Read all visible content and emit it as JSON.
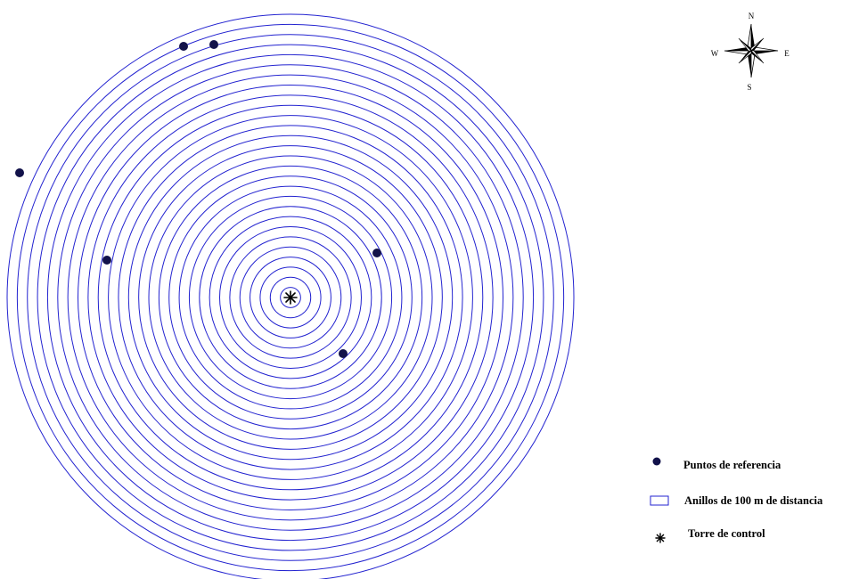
{
  "map": {
    "colors": {
      "ring_stroke": "#2323d0",
      "point_fill": "#12124a",
      "tower_fill": "#000000",
      "compass_fill": "#000000"
    },
    "rings": {
      "count": 28,
      "spacing_label": "100 m"
    },
    "tower": {
      "symbol": "asterisk-icon"
    },
    "reference_points": [
      {
        "id": "p1"
      },
      {
        "id": "p2"
      },
      {
        "id": "p3"
      },
      {
        "id": "p4"
      },
      {
        "id": "p5"
      },
      {
        "id": "p6"
      }
    ]
  },
  "compass": {
    "north": "N",
    "south": "S",
    "east": "E",
    "west": "W"
  },
  "legend": {
    "items": [
      {
        "symbol": "dot-icon",
        "label": "Puntos de referencia"
      },
      {
        "symbol": "ring-icon",
        "label": "Anillos de 100 m de distancia"
      },
      {
        "symbol": "asterisk-icon",
        "label": "Torre de control"
      }
    ]
  }
}
